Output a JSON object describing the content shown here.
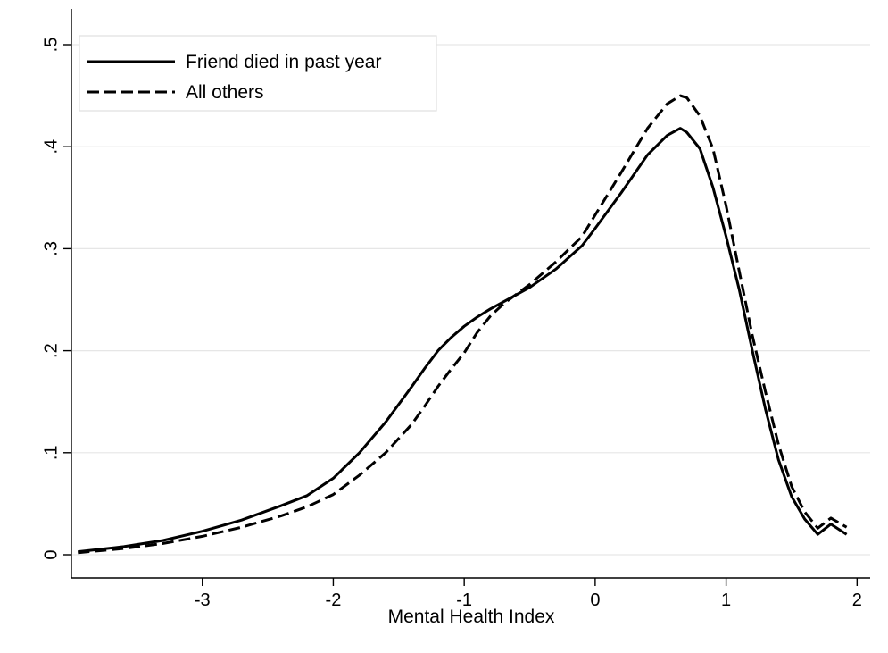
{
  "chart_data": {
    "type": "line",
    "title": "",
    "xlabel": "Mental Health Index",
    "ylabel": "",
    "xlim": [
      -4.0,
      2.1
    ],
    "ylim": [
      0,
      0.5
    ],
    "xticks": [
      -3,
      -2,
      -1,
      0,
      1,
      2
    ],
    "xtick_labels": [
      "-3",
      "-2",
      "-1",
      "0",
      "1",
      "2"
    ],
    "yticks": [
      0,
      0.1,
      0.2,
      0.3,
      0.4,
      0.5
    ],
    "ytick_labels": [
      "0",
      ".1",
      ".2",
      ".3",
      ".4",
      ".5"
    ],
    "grid": "horizontal",
    "legend_position": "top-left",
    "series": [
      {
        "name": "Friend died in past year",
        "style": "solid",
        "color": "#000000",
        "x": [
          -3.95,
          -3.6,
          -3.3,
          -3.0,
          -2.7,
          -2.4,
          -2.2,
          -2.0,
          -1.8,
          -1.6,
          -1.4,
          -1.3,
          -1.2,
          -1.1,
          -1.0,
          -0.9,
          -0.8,
          -0.7,
          -0.5,
          -0.3,
          -0.1,
          0.0,
          0.2,
          0.4,
          0.55,
          0.65,
          0.7,
          0.8,
          0.9,
          1.0,
          1.1,
          1.2,
          1.3,
          1.4,
          1.5,
          1.6,
          1.7,
          1.8,
          1.92
        ],
        "y": [
          0.003,
          0.008,
          0.014,
          0.023,
          0.034,
          0.048,
          0.058,
          0.075,
          0.1,
          0.13,
          0.165,
          0.183,
          0.2,
          0.213,
          0.224,
          0.233,
          0.241,
          0.248,
          0.262,
          0.28,
          0.303,
          0.32,
          0.355,
          0.392,
          0.411,
          0.418,
          0.414,
          0.398,
          0.36,
          0.312,
          0.26,
          0.2,
          0.143,
          0.093,
          0.057,
          0.035,
          0.02,
          0.03,
          0.02
        ]
      },
      {
        "name": "All others",
        "style": "dashed",
        "color": "#000000",
        "x": [
          -3.95,
          -3.6,
          -3.3,
          -3.0,
          -2.7,
          -2.4,
          -2.2,
          -2.0,
          -1.8,
          -1.6,
          -1.4,
          -1.3,
          -1.2,
          -1.1,
          -1.0,
          -0.9,
          -0.8,
          -0.7,
          -0.5,
          -0.3,
          -0.1,
          0.0,
          0.2,
          0.4,
          0.55,
          0.65,
          0.7,
          0.8,
          0.9,
          1.0,
          1.1,
          1.2,
          1.3,
          1.4,
          1.5,
          1.6,
          1.7,
          1.8,
          1.92
        ],
        "y": [
          0.002,
          0.006,
          0.011,
          0.018,
          0.027,
          0.038,
          0.047,
          0.059,
          0.078,
          0.1,
          0.128,
          0.146,
          0.165,
          0.182,
          0.198,
          0.218,
          0.234,
          0.246,
          0.265,
          0.287,
          0.312,
          0.333,
          0.375,
          0.418,
          0.442,
          0.45,
          0.448,
          0.43,
          0.398,
          0.342,
          0.278,
          0.215,
          0.16,
          0.108,
          0.067,
          0.042,
          0.026,
          0.036,
          0.027
        ]
      }
    ]
  }
}
